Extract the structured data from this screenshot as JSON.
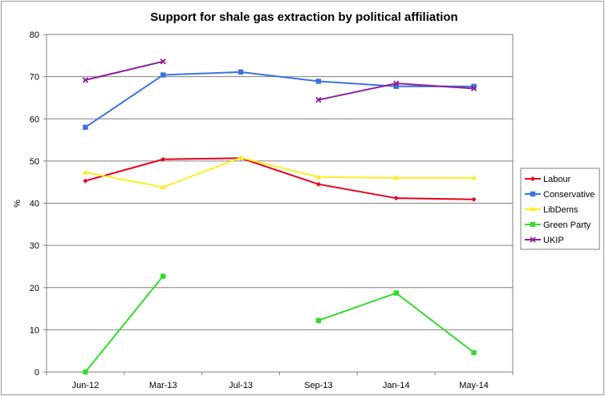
{
  "chart_data": {
    "type": "line",
    "title": "Support for shale gas extraction by political affiliation",
    "xlabel": "",
    "ylabel": "%",
    "categories": [
      "Jun-12",
      "Mar-13",
      "Jul-13",
      "Sep-13",
      "Jan-14",
      "May-14"
    ],
    "ylim": [
      0,
      80
    ],
    "yticks": [
      0,
      10,
      20,
      30,
      40,
      50,
      60,
      70,
      80
    ],
    "grid": true,
    "legend_position": "right",
    "series": [
      {
        "name": "Labour",
        "color": "#e8001c",
        "marker": "diamond",
        "values": [
          45.3,
          50.4,
          50.7,
          44.5,
          41.2,
          40.9
        ]
      },
      {
        "name": "Conservative",
        "color": "#3a73e0",
        "marker": "square",
        "values": [
          58.0,
          70.4,
          71.1,
          68.9,
          67.7,
          67.7
        ]
      },
      {
        "name": "LibDems",
        "color": "#ffee22",
        "marker": "triangle",
        "values": [
          47.3,
          43.8,
          50.8,
          46.2,
          46.0,
          46.0
        ]
      },
      {
        "name": "Green Party",
        "color": "#33dd2e",
        "marker": "square",
        "values": [
          0,
          22.7,
          null,
          12.2,
          18.7,
          4.6
        ]
      },
      {
        "name": "UKIP",
        "color": "#8a1f9a",
        "marker": "x",
        "values": [
          69.2,
          73.6,
          null,
          64.5,
          68.4,
          67.2
        ]
      }
    ]
  }
}
